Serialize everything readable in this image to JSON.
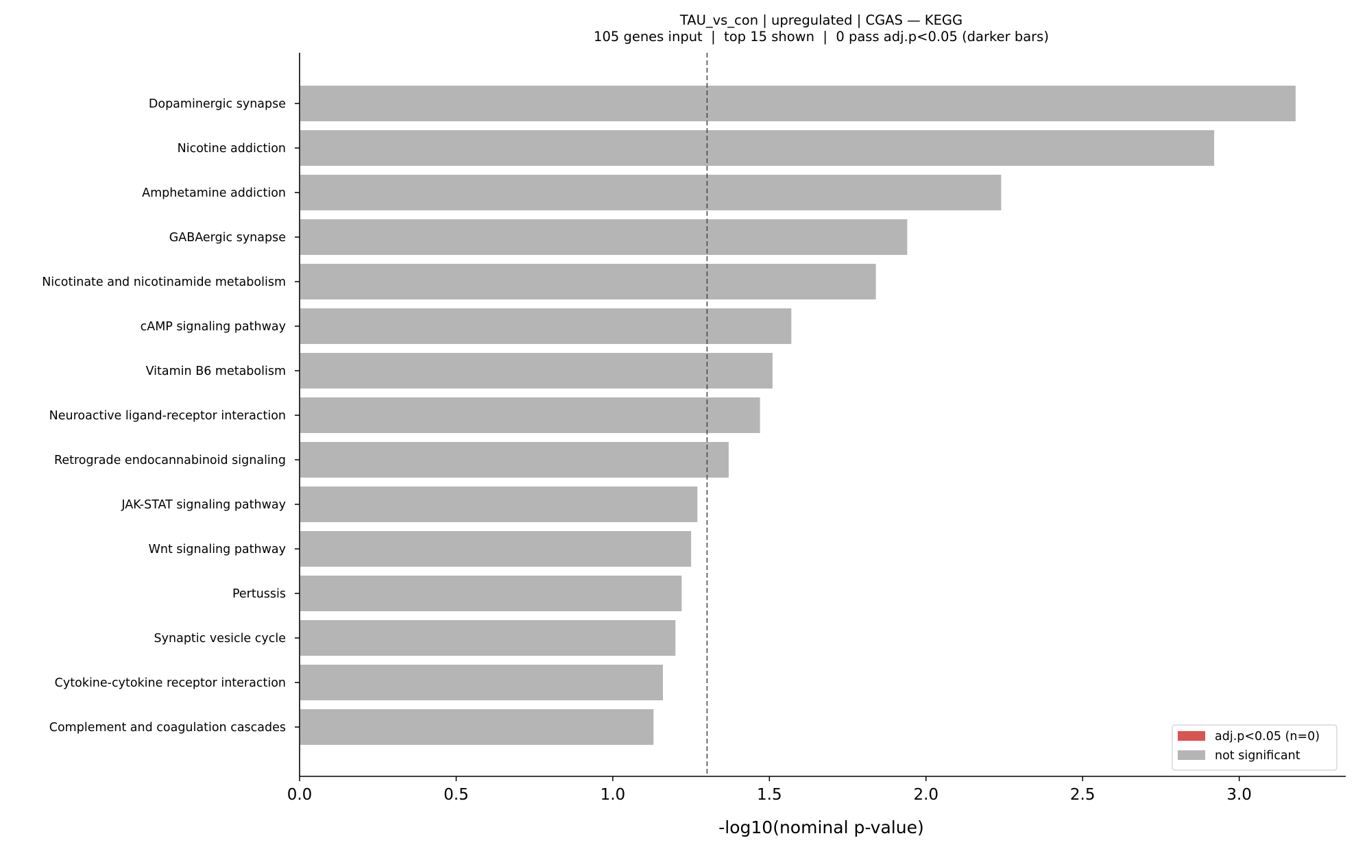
{
  "chart_data": {
    "type": "bar",
    "orientation": "horizontal",
    "title": "TAU_vs_con | upregulated | CGAS — KEGG",
    "subtitle": "105 genes input  |  top 15 shown  |  0 pass adj.p<0.05 (darker bars)",
    "xlabel": "-log10(nominal p-value)",
    "ylabel": "",
    "xlim": [
      0,
      3.34
    ],
    "xticks": [
      0.0,
      0.5,
      1.0,
      1.5,
      2.0,
      2.5,
      3.0
    ],
    "xtick_labels": [
      "0.0",
      "0.5",
      "1.0",
      "1.5",
      "2.0",
      "2.5",
      "3.0"
    ],
    "threshold_line": 1.301,
    "grid": false,
    "legend_position": "bottom-right",
    "categories": [
      "Dopaminergic synapse",
      "Nicotine addiction",
      "Amphetamine addiction",
      "GABAergic synapse",
      "Nicotinate and nicotinamide metabolism",
      "cAMP signaling pathway",
      "Vitamin B6 metabolism",
      "Neuroactive ligand-receptor interaction",
      "Retrograde endocannabinoid signaling",
      "JAK-STAT signaling pathway",
      "Wnt signaling pathway",
      "Pertussis",
      "Synaptic vesicle cycle",
      "Cytokine-cytokine receptor interaction",
      "Complement and coagulation cascades"
    ],
    "values": [
      3.18,
      2.92,
      2.24,
      1.94,
      1.84,
      1.57,
      1.51,
      1.47,
      1.37,
      1.27,
      1.25,
      1.22,
      1.2,
      1.16,
      1.13
    ],
    "significant": [
      false,
      false,
      false,
      false,
      false,
      false,
      false,
      false,
      false,
      false,
      false,
      false,
      false,
      false,
      false
    ],
    "colors": {
      "significant": "#d9534f",
      "not_significant": "#b5b5b5"
    },
    "legend": [
      {
        "label": "adj.p<0.05 (n=0)",
        "color": "#d9534f"
      },
      {
        "label": "not significant",
        "color": "#b5b5b5"
      }
    ]
  }
}
